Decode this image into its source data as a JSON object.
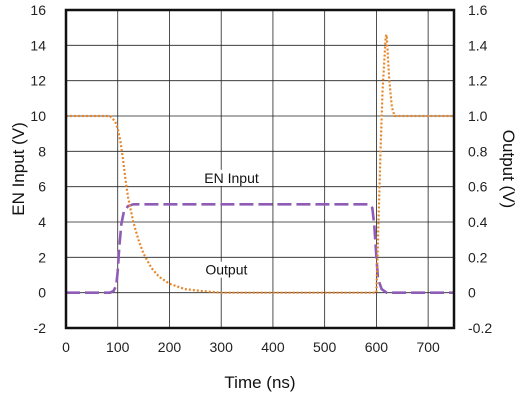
{
  "chart_data": {
    "type": "line",
    "title": "",
    "xlabel": "Time (ns)",
    "ylabel_left": "EN Input (V)",
    "ylabel_right": "Output (V)",
    "xlim": [
      0,
      750
    ],
    "ylim_left": [
      -2,
      16
    ],
    "ylim_right": [
      -0.2,
      1.6
    ],
    "x_ticks": [
      0,
      100,
      200,
      300,
      400,
      500,
      600,
      700
    ],
    "y_left_ticks": [
      -2,
      0,
      2,
      4,
      6,
      8,
      10,
      12,
      14,
      16
    ],
    "y_right_ticks": [
      "-0.2",
      "0",
      "0.2",
      "0.4",
      "0.6",
      "0.8",
      "1.0",
      "1.2",
      "1.4",
      "1.6"
    ],
    "grid": true,
    "series": [
      {
        "name": "EN Input",
        "axis": "left",
        "style": "dashed",
        "color": "#8e5bb5",
        "x": [
          0,
          85,
          92,
          97,
          100,
          103,
          107,
          112,
          120,
          130,
          145,
          160,
          585,
          592,
          596,
          600,
          603,
          610,
          620,
          750
        ],
        "y": [
          0,
          0,
          0.1,
          0.4,
          1.2,
          2.6,
          3.9,
          4.6,
          4.9,
          5.0,
          5.0,
          5.0,
          5.0,
          4.8,
          3.8,
          2.0,
          0.8,
          0.2,
          0,
          0
        ]
      },
      {
        "name": "Output",
        "axis": "right",
        "style": "dotted",
        "color": "#e8862a",
        "x": [
          0,
          85,
          95,
          100,
          105,
          110,
          115,
          120,
          130,
          140,
          150,
          165,
          180,
          200,
          230,
          260,
          300,
          400,
          600,
          603,
          608,
          612,
          616,
          618,
          620,
          622,
          625,
          630,
          635,
          750
        ],
        "y": [
          1.0,
          1.0,
          0.97,
          0.93,
          0.86,
          0.76,
          0.64,
          0.54,
          0.4,
          0.3,
          0.22,
          0.14,
          0.09,
          0.05,
          0.02,
          0.01,
          0.0,
          0.0,
          0.0,
          0.3,
          0.8,
          1.15,
          1.35,
          1.45,
          1.46,
          1.35,
          1.2,
          1.05,
          1.0,
          1.0
        ]
      }
    ],
    "annotations": [
      {
        "text": "EN Input",
        "x": 320,
        "y": 6.5
      },
      {
        "text": "Output",
        "x": 310,
        "y": 1.3
      }
    ]
  }
}
